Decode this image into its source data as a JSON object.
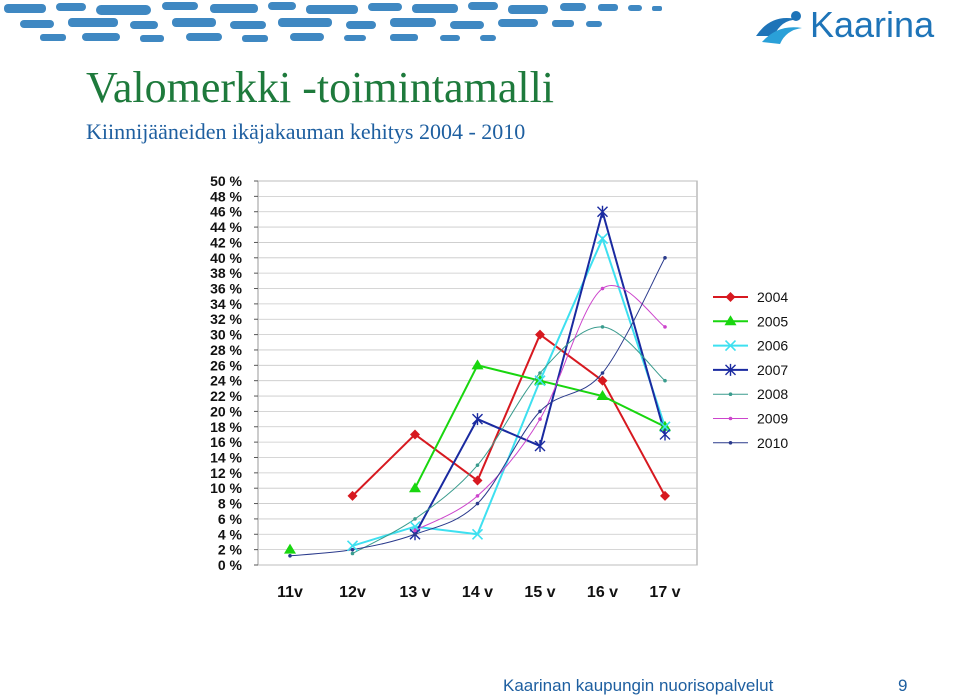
{
  "brand": {
    "name": "Kaarina",
    "color": "#1e74b8"
  },
  "slide": {
    "title": "Valomerkki -toimintamalli",
    "subtitle": "Kiinnijääneiden ikäjakauman kehitys 2004 - 2010",
    "footer": "Kaarinan kaupungin nuorisopalvelut",
    "page_number": "9"
  },
  "chart_data": {
    "type": "line",
    "categories": [
      "11v",
      "12v",
      "13 v",
      "14 v",
      "15 v",
      "16 v",
      "17 v"
    ],
    "yticks": [
      "0 %",
      "2 %",
      "4 %",
      "6 %",
      "8 %",
      "10 %",
      "12 %",
      "14 %",
      "16 %",
      "18 %",
      "20 %",
      "22 %",
      "24 %",
      "26 %",
      "28 %",
      "30 %",
      "32 %",
      "34 %",
      "36 %",
      "38 %",
      "40 %",
      "42 %",
      "44 %",
      "46 %",
      "48 %",
      "50 %"
    ],
    "ylim": [
      0,
      50
    ],
    "grid": "horizontal",
    "legend_position": "right",
    "series": [
      {
        "name": "2004",
        "color": "#d71920",
        "marker": "diamond",
        "smooth": false,
        "values": [
          null,
          9,
          17,
          11,
          30,
          24,
          9
        ]
      },
      {
        "name": "2005",
        "color": "#19d60f",
        "marker": "triangle",
        "smooth": false,
        "values": [
          2,
          null,
          10,
          26,
          24,
          22,
          18
        ]
      },
      {
        "name": "2006",
        "color": "#3ee0f0",
        "marker": "x",
        "smooth": false,
        "values": [
          null,
          2.5,
          5,
          4,
          24,
          42.5,
          18
        ]
      },
      {
        "name": "2007",
        "color": "#1a2aa0",
        "marker": "star",
        "smooth": false,
        "values": [
          null,
          null,
          4,
          19,
          15.5,
          46,
          17
        ]
      },
      {
        "name": "2008",
        "color": "#3a9c8e",
        "marker": "dot",
        "smooth": true,
        "values": [
          null,
          1.5,
          6,
          13,
          25,
          31,
          24
        ]
      },
      {
        "name": "2009",
        "color": "#cc44cc",
        "marker": "dot",
        "smooth": true,
        "values": [
          null,
          null,
          4.5,
          9,
          19,
          36,
          31
        ]
      },
      {
        "name": "2010",
        "color": "#2a3a8c",
        "marker": "dot",
        "smooth": true,
        "values": [
          1.2,
          2,
          4,
          8,
          20,
          25,
          40
        ]
      }
    ]
  }
}
